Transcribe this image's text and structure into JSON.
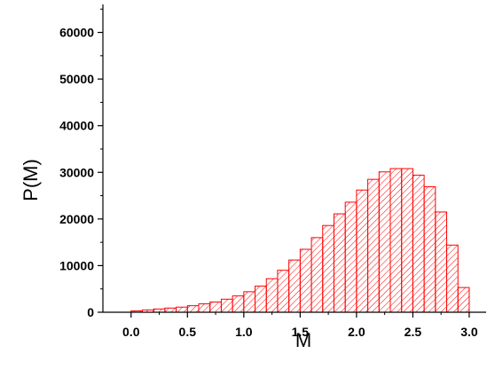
{
  "chart_data": {
    "type": "bar",
    "xlabel": "M",
    "ylabel": "P(M)",
    "xlim": [
      -0.25,
      3.15
    ],
    "ylim": [
      0,
      66000
    ],
    "x_ticks": [
      0.0,
      0.5,
      1.0,
      1.5,
      2.0,
      2.5,
      3.0
    ],
    "x_tick_labels": [
      "0.0",
      "0.5",
      "1.0",
      "1.5",
      "2.0",
      "2.5",
      "3.0"
    ],
    "y_ticks": [
      0,
      10000,
      20000,
      30000,
      40000,
      50000,
      60000
    ],
    "y_tick_labels": [
      "0",
      "10000",
      "20000",
      "30000",
      "40000",
      "50000",
      "60000"
    ],
    "bin_width": 0.1,
    "bin_starts": [
      0.0,
      0.1,
      0.2,
      0.3,
      0.4,
      0.5,
      0.6,
      0.7,
      0.8,
      0.9,
      1.0,
      1.1,
      1.2,
      1.3,
      1.4,
      1.5,
      1.6,
      1.7,
      1.8,
      1.9,
      2.0,
      2.1,
      2.2,
      2.3,
      2.4,
      2.5,
      2.6,
      2.7,
      2.8,
      2.9
    ],
    "values": [
      300,
      500,
      700,
      900,
      1100,
      1400,
      1800,
      2200,
      2800,
      3500,
      4400,
      5600,
      7200,
      9000,
      11200,
      13500,
      16000,
      18600,
      21100,
      23600,
      26200,
      28500,
      30100,
      30800,
      30800,
      29400,
      26900,
      21500,
      14400,
      5300
    ],
    "bar_stroke": "#ff0000",
    "bar_hatch": "#ff0000",
    "hatch_style": "diagonal",
    "grid": false,
    "legend": false
  }
}
